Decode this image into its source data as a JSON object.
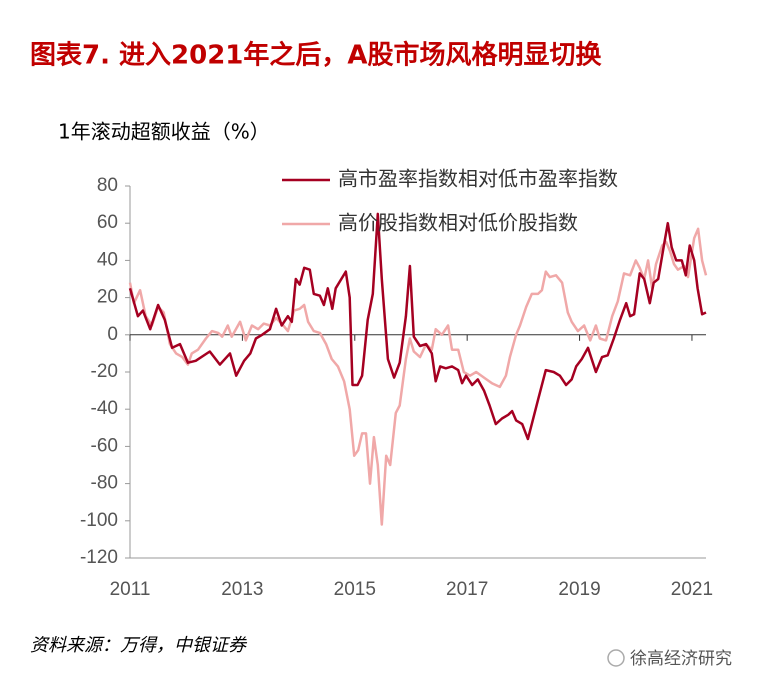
{
  "chart_data": {
    "type": "line",
    "title": "图表7. 进入2021年之后，A股市场风格明显切换",
    "y_label": "1年滚动超额收益（%）",
    "source": "资料来源：万得，中银证券",
    "watermark": "徐高经济研究",
    "xlim": [
      2011,
      2021.25
    ],
    "xticks": [
      2011,
      2013,
      2015,
      2017,
      2019,
      2021
    ],
    "ylim": [
      -120,
      80
    ],
    "yticks": [
      -120,
      -100,
      -80,
      -60,
      -40,
      -20,
      0,
      20,
      40,
      60,
      80
    ],
    "legend": "top-right",
    "series": [
      {
        "name": "高市盈率指数相对低市盈率指数",
        "color": "#a50021",
        "x": [
          2011.0,
          2011.14,
          2011.23,
          2011.36,
          2011.5,
          2011.62,
          2011.75,
          2011.89,
          2012.03,
          2012.17,
          2012.42,
          2012.6,
          2012.78,
          2012.89,
          2013.03,
          2013.14,
          2013.24,
          2013.35,
          2013.49,
          2013.6,
          2013.7,
          2013.81,
          2013.88,
          2013.95,
          2014.02,
          2014.1,
          2014.2,
          2014.27,
          2014.38,
          2014.45,
          2014.52,
          2014.6,
          2014.66,
          2014.84,
          2014.91,
          2014.96,
          2015.05,
          2015.13,
          2015.23,
          2015.32,
          2015.41,
          2015.48,
          2015.59,
          2015.7,
          2015.8,
          2015.91,
          2015.98,
          2016.05,
          2016.16,
          2016.27,
          2016.37,
          2016.44,
          2016.52,
          2016.62,
          2016.73,
          2016.84,
          2016.91,
          2016.98,
          2017.09,
          2017.19,
          2017.3,
          2017.4,
          2017.51,
          2017.62,
          2017.73,
          2017.8,
          2017.87,
          2017.98,
          2018.08,
          2018.15,
          2018.26,
          2018.4,
          2018.54,
          2018.65,
          2018.76,
          2018.86,
          2018.94,
          2019.04,
          2019.15,
          2019.29,
          2019.4,
          2019.5,
          2019.61,
          2019.72,
          2019.83,
          2019.9,
          2019.97,
          2020.07,
          2020.15,
          2020.25,
          2020.32,
          2020.4,
          2020.5,
          2020.57,
          2020.64,
          2020.72,
          2020.82,
          2020.89,
          2020.96,
          2021.04,
          2021.1,
          2021.18,
          2021.25
        ],
        "values": [
          25,
          10,
          13,
          3,
          16,
          8,
          -7,
          -5,
          -15,
          -14,
          -9,
          -16,
          -10,
          -22,
          -14,
          -10,
          -2,
          0,
          3,
          14,
          5,
          10,
          7,
          30,
          27,
          36,
          35,
          22,
          21,
          16,
          25,
          14,
          25,
          34,
          20,
          -27,
          -27,
          -22,
          8,
          22,
          65,
          30,
          -13,
          -23,
          -15,
          10,
          37,
          -1,
          -6,
          -5,
          -10,
          -25,
          -17,
          -18,
          -17,
          -19,
          -26,
          -22,
          -27,
          -24,
          -30,
          -38,
          -48,
          -45,
          -43,
          -41,
          -46,
          -48,
          -56,
          -48,
          -35,
          -19,
          -20,
          -22,
          -27,
          -24,
          -17,
          -13,
          -7,
          -20,
          -12,
          -11,
          -2,
          8,
          17,
          10,
          11,
          33,
          30,
          17,
          28,
          30,
          48,
          60,
          47,
          40,
          40,
          32,
          48,
          40,
          25,
          11,
          12
        ]
      },
      {
        "name": "高价股指数相对低价股指数",
        "color": "#f0a8a8",
        "x": [
          2011.0,
          2011.07,
          2011.18,
          2011.28,
          2011.39,
          2011.5,
          2011.6,
          2011.71,
          2011.82,
          2011.93,
          2012.03,
          2012.1,
          2012.21,
          2012.35,
          2012.46,
          2012.57,
          2012.64,
          2012.74,
          2012.81,
          2012.96,
          2013.06,
          2013.17,
          2013.28,
          2013.38,
          2013.49,
          2013.6,
          2013.7,
          2013.81,
          2013.92,
          2014.02,
          2014.1,
          2014.17,
          2014.27,
          2014.38,
          2014.49,
          2014.59,
          2014.7,
          2014.81,
          2014.91,
          2014.99,
          2015.06,
          2015.13,
          2015.2,
          2015.27,
          2015.34,
          2015.41,
          2015.48,
          2015.56,
          2015.63,
          2015.73,
          2015.8,
          2015.91,
          2015.98,
          2016.05,
          2016.16,
          2016.27,
          2016.37,
          2016.44,
          2016.55,
          2016.66,
          2016.73,
          2016.84,
          2016.94,
          2017.05,
          2017.16,
          2017.3,
          2017.44,
          2017.58,
          2017.69,
          2017.76,
          2017.87,
          2017.94,
          2018.05,
          2018.15,
          2018.26,
          2018.33,
          2018.4,
          2018.47,
          2018.58,
          2018.69,
          2018.79,
          2018.86,
          2018.97,
          2019.08,
          2019.19,
          2019.29,
          2019.36,
          2019.47,
          2019.58,
          2019.68,
          2019.79,
          2019.9,
          2020.0,
          2020.07,
          2020.15,
          2020.22,
          2020.29,
          2020.36,
          2020.47,
          2020.54,
          2020.61,
          2020.68,
          2020.75,
          2020.86,
          2020.93,
          2021.04,
          2021.11,
          2021.18,
          2021.25
        ],
        "values": [
          28,
          17,
          24,
          10,
          5,
          15,
          12,
          -5,
          -10,
          -12,
          -16,
          -10,
          -8,
          -2,
          2,
          1,
          -1,
          5,
          -1,
          7,
          -3,
          5,
          3,
          6,
          5,
          9,
          6,
          2,
          13,
          14,
          16,
          7,
          2,
          1,
          -5,
          -13,
          -17,
          -25,
          -40,
          -65,
          -62,
          -53,
          -53,
          -80,
          -55,
          -70,
          -102,
          -65,
          -70,
          -42,
          -38,
          -13,
          -2,
          -9,
          -12,
          -5,
          -8,
          3,
          0,
          5,
          -8,
          -8,
          -20,
          -22,
          -20,
          -23,
          -26,
          -28,
          -22,
          -12,
          0,
          5,
          15,
          22,
          22,
          24,
          34,
          31,
          32,
          28,
          12,
          7,
          2,
          5,
          -3,
          5,
          -2,
          -3,
          10,
          18,
          33,
          32,
          40,
          36,
          30,
          40,
          25,
          38,
          48,
          50,
          45,
          38,
          35,
          37,
          31,
          52,
          57,
          40,
          32
        ]
      }
    ]
  }
}
